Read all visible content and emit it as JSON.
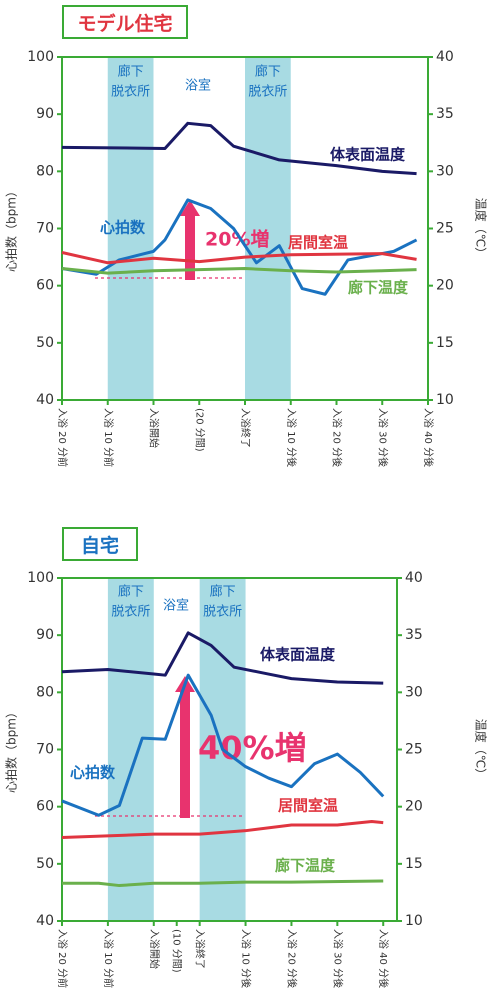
{
  "charts": [
    {
      "header": "モデル住宅",
      "type": "line",
      "xlim": [
        0,
        8
      ],
      "xticks": [
        {
          "value": 0,
          "label": "入浴 20 分前"
        },
        {
          "value": 1,
          "label": "入浴 10 分前"
        },
        {
          "value": 2,
          "label": "入浴開始"
        },
        {
          "value": 3,
          "label": "(20 分間)"
        },
        {
          "value": 4,
          "label": "入浴終了"
        },
        {
          "value": 5,
          "label": "入浴 10 分後"
        },
        {
          "value": 6,
          "label": "入浴 20 分後"
        },
        {
          "value": 7,
          "label": "入浴 30 分後"
        },
        {
          "value": 8,
          "label": "入浴 40 分後"
        }
      ],
      "ylim": [
        40,
        100
      ],
      "yticks": [
        40,
        50,
        60,
        70,
        80,
        90,
        100
      ],
      "ylabel": "心拍数（bpm）",
      "y2lim": [
        10,
        40
      ],
      "y2ticks": [
        10,
        15,
        20,
        25,
        30,
        35,
        40
      ],
      "y2label": "温度（℃）",
      "bands": [
        {
          "x": [
            1,
            2
          ],
          "label": [
            "廊下",
            "脱衣所"
          ]
        },
        {
          "x": [
            4,
            5
          ],
          "label": [
            "廊下",
            "脱衣所"
          ]
        }
      ],
      "room_label": "浴室",
      "increase_label": "20%増",
      "series": [
        {
          "name": "体表面温度",
          "color": "#1a1a66",
          "axis": "y2",
          "x": [
            0,
            2.25,
            2.75,
            3.25,
            3.75,
            4.75,
            6,
            7,
            7.75
          ],
          "values": [
            32.1,
            32.0,
            34.2,
            34.0,
            32.2,
            31.0,
            30.5,
            30.0,
            29.8
          ]
        },
        {
          "name": "心拍数",
          "color": "#1a72c0",
          "axis": "y",
          "x": [
            0,
            0.75,
            1.25,
            2,
            2.25,
            2.75,
            3.25,
            3.75,
            4.25,
            4.75,
            5.25,
            5.75,
            6.25,
            7.25,
            7.75
          ],
          "values": [
            63,
            62,
            64.5,
            66,
            68,
            75,
            73.5,
            70,
            64,
            67,
            59.5,
            58.5,
            64.5,
            66,
            68
          ]
        },
        {
          "name": "居間室温",
          "color": "#e03540",
          "axis": "y2",
          "x": [
            0,
            1,
            2,
            3,
            4,
            5,
            7,
            7.75
          ],
          "values": [
            22.9,
            22.0,
            22.4,
            22.1,
            22.5,
            22.7,
            22.8,
            22.3
          ]
        },
        {
          "name": "廊下温度",
          "color": "#6ab04c",
          "axis": "y2",
          "x": [
            0,
            1,
            2,
            4,
            5,
            6,
            7,
            7.75
          ],
          "values": [
            21.5,
            21.1,
            21.3,
            21.5,
            21.3,
            21.2,
            21.3,
            21.4
          ]
        }
      ]
    },
    {
      "header": "自宅",
      "type": "line",
      "xlim": [
        0,
        7.3
      ],
      "xticks": [
        {
          "value": 0,
          "label": "入浴 20 分前"
        },
        {
          "value": 1,
          "label": "入浴 10 分前"
        },
        {
          "value": 2,
          "label": "入浴開始"
        },
        {
          "value": 2.5,
          "label": "(10 分間)"
        },
        {
          "value": 3,
          "label": "入浴終了"
        },
        {
          "value": 4,
          "label": "入浴 10 分後"
        },
        {
          "value": 5,
          "label": "入浴 20 分後"
        },
        {
          "value": 6,
          "label": "入浴 30 分後"
        },
        {
          "value": 7,
          "label": "入浴 40 分後"
        }
      ],
      "ylim": [
        40,
        100
      ],
      "yticks": [
        40,
        50,
        60,
        70,
        80,
        90,
        100
      ],
      "ylabel": "心拍数（bpm）",
      "y2lim": [
        10,
        40
      ],
      "y2ticks": [
        10,
        15,
        20,
        25,
        30,
        35,
        40
      ],
      "y2label": "温度（℃）",
      "bands": [
        {
          "x": [
            1,
            2
          ],
          "label": [
            "廊下",
            "脱衣所"
          ]
        },
        {
          "x": [
            3,
            4
          ],
          "label": [
            "廊下",
            "脱衣所"
          ]
        }
      ],
      "room_label": "浴室",
      "increase_label": "40%増",
      "series": [
        {
          "name": "体表面温度",
          "color": "#1a1a66",
          "axis": "y2",
          "x": [
            0,
            1,
            2,
            2.25,
            2.75,
            3.25,
            3.75,
            4.5,
            5,
            6,
            7
          ],
          "values": [
            31.8,
            32.0,
            31.6,
            31.5,
            35.2,
            34.1,
            32.2,
            31.6,
            31.2,
            30.9,
            30.8
          ]
        },
        {
          "name": "心拍数",
          "color": "#1a72c0",
          "axis": "y",
          "x": [
            0,
            0.8,
            1.25,
            1.75,
            2.25,
            2.75,
            3.25,
            3.5,
            4,
            4.5,
            5,
            5.5,
            6,
            6.5,
            7
          ],
          "values": [
            61,
            58.5,
            60.2,
            72,
            71.8,
            83,
            76,
            70,
            67,
            65,
            63.5,
            67.5,
            69.2,
            66,
            61.8
          ]
        },
        {
          "name": "居間室温",
          "color": "#e03540",
          "axis": "y2",
          "x": [
            0,
            2,
            3,
            4,
            5,
            6,
            6.75,
            7
          ],
          "values": [
            17.3,
            17.6,
            17.6,
            17.9,
            18.4,
            18.4,
            18.7,
            18.6
          ]
        },
        {
          "name": "廊下温度",
          "color": "#6ab04c",
          "axis": "y2",
          "x": [
            0,
            0.8,
            1.25,
            2,
            3,
            4,
            5,
            7
          ],
          "values": [
            13.3,
            13.3,
            13.1,
            13.3,
            13.3,
            13.4,
            13.4,
            13.5
          ]
        }
      ]
    }
  ]
}
